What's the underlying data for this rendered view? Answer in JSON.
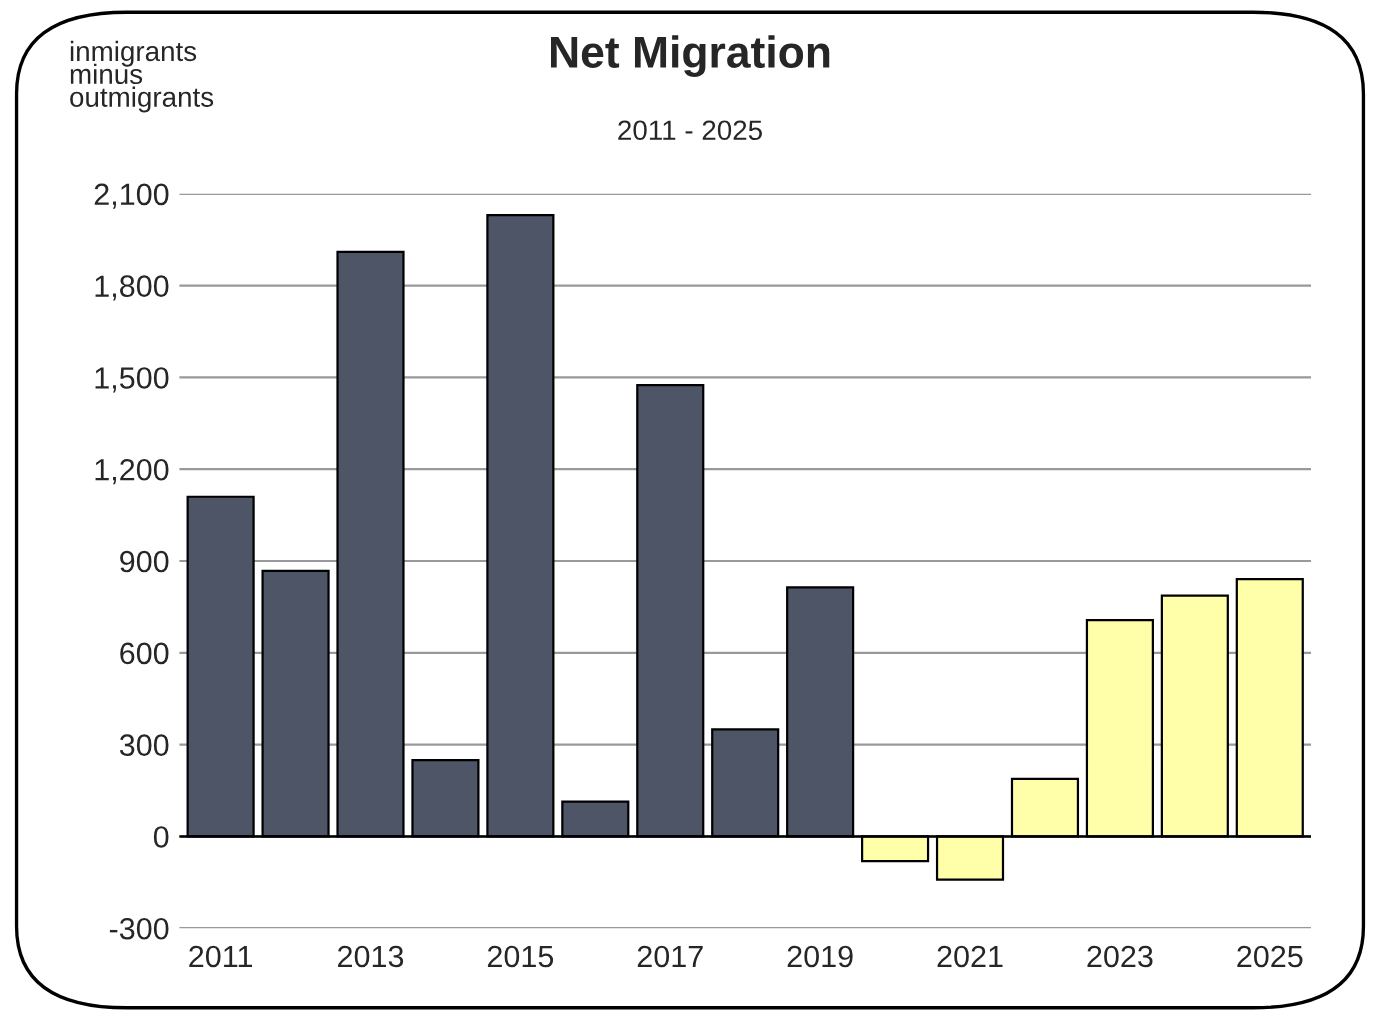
{
  "chart_data": {
    "type": "bar",
    "title": "Net Migration",
    "subtitle": "2011 - 2025",
    "ylabel": "inmigrants\nminus\noutmigrants",
    "categories": [
      "2011",
      null,
      "2013",
      null,
      "2015",
      null,
      "2017",
      null,
      "2019",
      null,
      "2021",
      null,
      "2023",
      null,
      "2025"
    ],
    "values": [
      1110,
      868,
      1910,
      249,
      2030,
      114,
      1475,
      350,
      814,
      -81,
      -141,
      188,
      707,
      787,
      841
    ],
    "colors": [
      "#4d5566",
      "#4d5566",
      "#4d5566",
      "#4d5566",
      "#4d5566",
      "#4d5566",
      "#4d5566",
      "#4d5566",
      "#4d5566",
      "#ffffaa",
      "#ffffaa",
      "#ffffaa",
      "#ffffaa",
      "#ffffaa",
      "#ffffaa"
    ],
    "ylim": [
      -300,
      2100
    ],
    "yticks": [
      {
        "value": -300,
        "label": "-300"
      },
      0,
      300,
      600,
      900,
      {
        "value": 1200,
        "label": "1,200"
      },
      {
        "value": 1500,
        "label": "1,500"
      },
      {
        "value": 1800,
        "label": "1,800"
      },
      {
        "value": 2100,
        "label": "2,100"
      }
    ],
    "grid": "y",
    "legend": false
  }
}
